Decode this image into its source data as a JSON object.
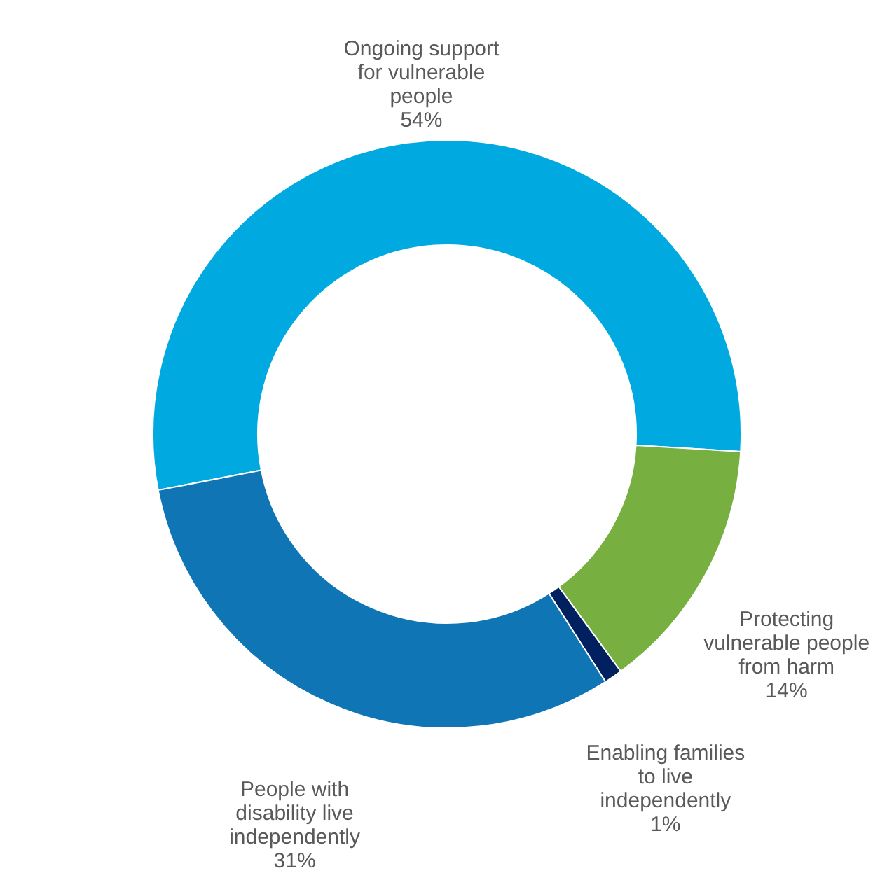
{
  "chart_data": {
    "type": "donut",
    "categories": [
      "Ongoing support for vulnerable people",
      "Protecting vulnerable people from harm",
      "Enabling families to live independently",
      "People with disability live independently"
    ],
    "values": [
      54,
      14,
      1,
      31
    ],
    "value_labels": [
      "54%",
      "14%",
      "1%",
      "31%"
    ],
    "colors": [
      "#00a9e0",
      "#77b041",
      "#002060",
      "#0f75b4"
    ],
    "legend": false
  }
}
